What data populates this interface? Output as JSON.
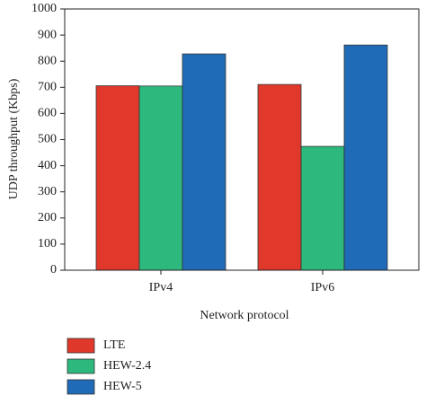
{
  "chart_data": {
    "type": "bar",
    "x_label": "Network protocol",
    "y_label": "UDP throughput (Kbps)",
    "categories": [
      "IPv4",
      "IPv6"
    ],
    "series": [
      {
        "name": "LTE",
        "color": "#e0382a",
        "values": [
          706,
          711
        ]
      },
      {
        "name": "HEW-2.4",
        "color": "#2db87d",
        "values": [
          705,
          474
        ]
      },
      {
        "name": "HEW-5",
        "color": "#1f6bb8",
        "values": [
          828,
          862
        ]
      }
    ],
    "ylim": [
      0,
      1000
    ],
    "yticks": [
      0,
      100,
      200,
      300,
      400,
      500,
      600,
      700,
      800,
      900,
      1000
    ],
    "legend": "bottom"
  }
}
